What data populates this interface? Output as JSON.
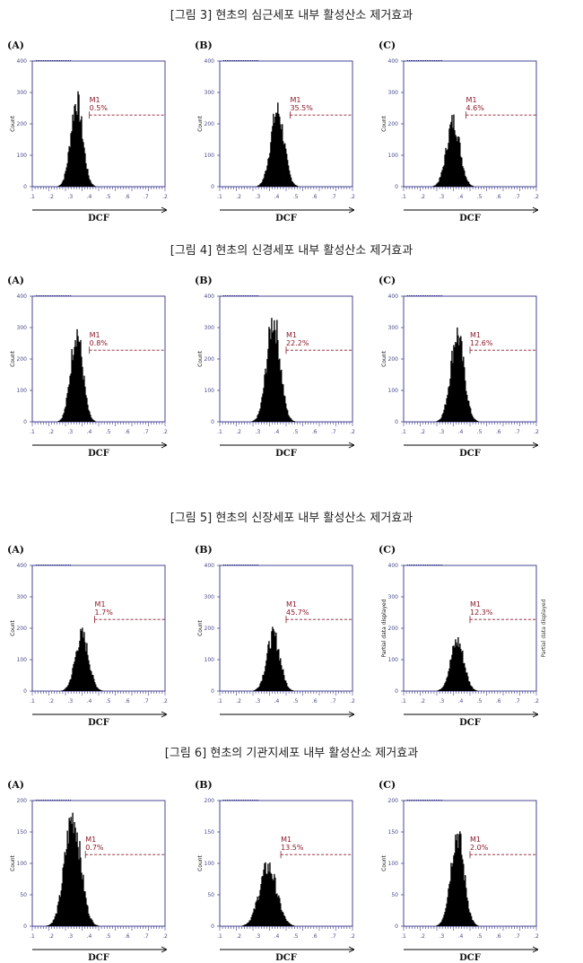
{
  "figures": [
    {
      "title": "[그림 3] 현초의 심근세포 내부 활성산소 제거효과",
      "panels": [
        {
          "label": "(A)",
          "ymax": "400",
          "yticks": [
            "0",
            "100",
            "200",
            "300",
            "400"
          ],
          "ylabel": "Count",
          "xlabel": "DCF",
          "xticks": [
            ".1",
            ".2",
            ".3",
            ".4",
            ".5",
            ".6",
            ".7",
            ".2"
          ],
          "gate_label": "M1",
          "percent": "0.5%",
          "peak_pos": 0.33,
          "peak_height": 0.72,
          "width": 0.045,
          "side_label": ""
        },
        {
          "label": "(B)",
          "ymax": "400",
          "yticks": [
            "0",
            "100",
            "200",
            "300",
            "400"
          ],
          "ylabel": "Count",
          "xlabel": "DCF",
          "xticks": [
            ".1",
            ".2",
            ".3",
            ".4",
            ".5",
            ".6",
            ".7",
            ".2"
          ],
          "gate_label": "M1",
          "percent": "35.5%",
          "peak_pos": 0.43,
          "peak_height": 0.64,
          "width": 0.05,
          "side_label": ""
        },
        {
          "label": "(C)",
          "ymax": "400",
          "yticks": [
            "0",
            "100",
            "200",
            "300",
            "400"
          ],
          "ylabel": "Count",
          "xlabel": "DCF",
          "xticks": [
            ".1",
            ".2",
            ".3",
            ".4",
            ".5",
            ".6",
            ".7",
            ".2"
          ],
          "gate_label": "M1",
          "percent": "4.6%",
          "peak_pos": 0.37,
          "peak_height": 0.55,
          "width": 0.05,
          "side_label": ""
        }
      ]
    },
    {
      "title": "[그림 4] 현초의 신경세포 내부 활성산소 제거효과",
      "panels": [
        {
          "label": "(A)",
          "ymax": "400",
          "yticks": [
            "0",
            "100",
            "200",
            "300",
            "400"
          ],
          "ylabel": "Count",
          "xlabel": "DCF",
          "xticks": [
            ".1",
            ".2",
            ".3",
            ".4",
            ".5",
            ".6",
            ".7",
            ".2"
          ],
          "gate_label": "M1",
          "percent": "0.8%",
          "peak_pos": 0.33,
          "peak_height": 0.76,
          "width": 0.045,
          "side_label": ""
        },
        {
          "label": "(B)",
          "ymax": "400",
          "yticks": [
            "0",
            "100",
            "200",
            "300",
            "400"
          ],
          "ylabel": "Count",
          "xlabel": "DCF",
          "xticks": [
            ".1",
            ".2",
            ".3",
            ".4",
            ".5",
            ".6",
            ".7",
            ".2"
          ],
          "gate_label": "M1",
          "percent": "22.2%",
          "peak_pos": 0.4,
          "peak_height": 0.86,
          "width": 0.05,
          "side_label": ""
        },
        {
          "label": "(C)",
          "ymax": "400",
          "yticks": [
            "0",
            "100",
            "200",
            "300",
            "400"
          ],
          "ylabel": "Count",
          "xlabel": "DCF",
          "xticks": [
            ".1",
            ".2",
            ".3",
            ".4",
            ".5",
            ".6",
            ".7",
            ".2"
          ],
          "gate_label": "M1",
          "percent": "12.6%",
          "peak_pos": 0.4,
          "peak_height": 0.74,
          "width": 0.05,
          "side_label": ""
        }
      ]
    },
    {
      "title": "[그림 5] 현초의 신장세포 내부 활성산소 제거효과",
      "panels": [
        {
          "label": "(A)",
          "ymax": "400",
          "yticks": [
            "0",
            "100",
            "200",
            "300",
            "400"
          ],
          "ylabel": "Count",
          "xlabel": "DCF",
          "xticks": [
            ".1",
            ".2",
            ".3",
            ".4",
            ".5",
            ".6",
            ".7",
            ".2"
          ],
          "gate_label": "M1",
          "percent": "1.7%",
          "peak_pos": 0.37,
          "peak_height": 0.47,
          "width": 0.05,
          "side_label": ""
        },
        {
          "label": "(B)",
          "ymax": "400",
          "yticks": [
            "0",
            "100",
            "200",
            "300",
            "400"
          ],
          "ylabel": "Count",
          "xlabel": "",
          "xticks": [
            ".1",
            ".2",
            ".3",
            ".4",
            ".5",
            ".6",
            ".7",
            ".2"
          ],
          "gate_label": "M1",
          "percent": "45.7%",
          "peak_pos": 0.4,
          "peak_height": 0.47,
          "width": 0.05,
          "side_label": ""
        },
        {
          "label": "(C)",
          "ymax": "400",
          "yticks": [
            "0",
            "100",
            "200",
            "300",
            "400"
          ],
          "ylabel": "Partial data displayed",
          "xlabel": "DCF",
          "xticks": [
            ".1",
            ".2",
            ".3",
            ".4",
            ".5",
            ".6",
            ".7",
            ".2"
          ],
          "gate_label": "M1",
          "percent": "12.3%",
          "peak_pos": 0.4,
          "peak_height": 0.42,
          "width": 0.05,
          "side_label": "Partial data displayed"
        }
      ]
    },
    {
      "title": "[그림 6] 현초의 기관지세포 내부 활성산소 제거효과",
      "panels": [
        {
          "label": "(A)",
          "ymax": "200",
          "yticks": [
            "0",
            "50",
            "100",
            "150",
            "200"
          ],
          "ylabel": "Count",
          "xlabel": "DCF",
          "xticks": [
            ".1",
            ".2",
            ".3",
            ".4",
            ".5",
            ".6",
            ".7",
            ".2"
          ],
          "gate_label": "M1",
          "percent": "0.7%",
          "peak_pos": 0.3,
          "peak_height": 0.92,
          "width": 0.06,
          "side_label": ""
        },
        {
          "label": "(B)",
          "ymax": "200",
          "yticks": [
            "0",
            "50",
            "100",
            "150",
            "200"
          ],
          "ylabel": "Count",
          "xlabel": "DCF",
          "xticks": [
            ".1",
            ".2",
            ".3",
            ".4",
            ".5",
            ".6",
            ".7",
            ".2"
          ],
          "gate_label": "M1",
          "percent": "13.5%",
          "peak_pos": 0.36,
          "peak_height": 0.5,
          "width": 0.065,
          "side_label": ""
        },
        {
          "label": "(C)",
          "ymax": "200",
          "yticks": [
            "0",
            "50",
            "100",
            "150",
            "200"
          ],
          "ylabel": "Count",
          "xlabel": "DCF",
          "xticks": [
            ".1",
            ".2",
            ".3",
            ".4",
            ".5",
            ".6",
            ".7",
            ".2"
          ],
          "gate_label": "M1",
          "percent": "2.0%",
          "peak_pos": 0.4,
          "peak_height": 0.78,
          "width": 0.05,
          "side_label": ""
        }
      ]
    }
  ],
  "chart_data": [
    {
      "type": "histogram",
      "figure": "[그림 3] 현초의 심근세포 내부 활성산소 제거효과",
      "xlabel": "DCF",
      "ylabel": "Count",
      "ylim": [
        0,
        400
      ],
      "series": [
        {
          "name": "(A)",
          "gate": "M1",
          "percent_gated": 0.5
        },
        {
          "name": "(B)",
          "gate": "M1",
          "percent_gated": 35.5
        },
        {
          "name": "(C)",
          "gate": "M1",
          "percent_gated": 4.6
        }
      ]
    },
    {
      "type": "histogram",
      "figure": "[그림 4] 현초의 신경세포 내부 활성산소 제거효과",
      "xlabel": "DCF",
      "ylabel": "Count",
      "ylim": [
        0,
        400
      ],
      "series": [
        {
          "name": "(A)",
          "gate": "M1",
          "percent_gated": 0.8
        },
        {
          "name": "(B)",
          "gate": "M1",
          "percent_gated": 22.2
        },
        {
          "name": "(C)",
          "gate": "M1",
          "percent_gated": 12.6
        }
      ]
    },
    {
      "type": "histogram",
      "figure": "[그림 5] 현초의 신장세포 내부 활성산소 제거효과",
      "xlabel": "DCF",
      "ylabel": "Count",
      "ylim": [
        0,
        400
      ],
      "series": [
        {
          "name": "(A)",
          "gate": "M1",
          "percent_gated": 1.7
        },
        {
          "name": "(B)",
          "gate": "M1",
          "percent_gated": 45.7
        },
        {
          "name": "(C)",
          "gate": "M1",
          "percent_gated": 12.3
        }
      ]
    },
    {
      "type": "histogram",
      "figure": "[그림 6] 현초의 기관지세포 내부 활성산소 제거효과",
      "xlabel": "DCF",
      "ylabel": "Count",
      "ylim": [
        0,
        200
      ],
      "series": [
        {
          "name": "(A)",
          "gate": "M1",
          "percent_gated": 0.7
        },
        {
          "name": "(B)",
          "gate": "M1",
          "percent_gated": 13.5
        },
        {
          "name": "(C)",
          "gate": "M1",
          "percent_gated": 2.0
        }
      ]
    }
  ]
}
